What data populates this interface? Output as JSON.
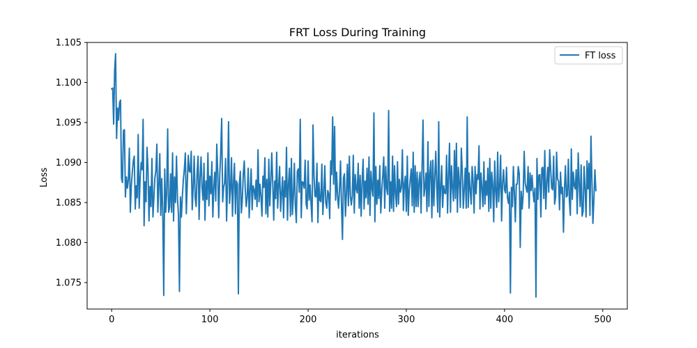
{
  "chart_data": {
    "type": "line",
    "title": "FRT Loss During Training",
    "xlabel": "iterations",
    "ylabel": "Loss",
    "xlim": [
      -25,
      525
    ],
    "ylim": [
      1.0717,
      1.105
    ],
    "xticks": [
      0,
      100,
      200,
      300,
      400,
      500
    ],
    "xtick_labels": [
      "0",
      "100",
      "200",
      "300",
      "400",
      "500"
    ],
    "yticks": [
      1.075,
      1.08,
      1.085,
      1.09,
      1.095,
      1.1,
      1.105
    ],
    "ytick_labels": [
      "1.075",
      "1.080",
      "1.085",
      "1.090",
      "1.095",
      "1.100",
      "1.105"
    ],
    "grid": false,
    "legend_position": "top-right",
    "series": [
      {
        "name": "FT loss",
        "color": "#1f77b4",
        "x_start": 0,
        "x_step": 1,
        "values": [
          1.0992,
          1.0993,
          1.0948,
          1.1015,
          1.1036,
          1.093,
          1.0968,
          1.0953,
          1.0975,
          1.0978,
          1.088,
          1.0875,
          1.094,
          1.0941,
          1.0857,
          1.0882,
          1.0868,
          1.0879,
          1.0918,
          1.0838,
          1.0871,
          1.0888,
          1.0902,
          1.0908,
          1.0842,
          1.0871,
          1.0856,
          1.0935,
          1.0843,
          1.0881,
          1.09,
          1.0891,
          1.0954,
          1.0821,
          1.0876,
          1.0851,
          1.0919,
          1.0891,
          1.0827,
          1.087,
          1.0845,
          1.0905,
          1.0832,
          1.0856,
          1.0881,
          1.089,
          1.0923,
          1.0838,
          1.0871,
          1.0911,
          1.0834,
          1.088,
          1.0839,
          1.0734,
          1.0892,
          1.0838,
          1.0861,
          1.0942,
          1.0838,
          1.0844,
          1.0886,
          1.0838,
          1.0912,
          1.0827,
          1.0882,
          1.085,
          1.0908,
          1.0855,
          1.0835,
          1.0739,
          1.0857,
          1.0832,
          1.0858,
          1.0879,
          1.0892,
          1.0912,
          1.0836,
          1.0876,
          1.0909,
          1.0889,
          1.0888,
          1.0914,
          1.0841,
          1.0869,
          1.0908,
          1.0856,
          1.0845,
          1.0888,
          1.0908,
          1.0829,
          1.0881,
          1.0907,
          1.0869,
          1.0853,
          1.0899,
          1.0828,
          1.0877,
          1.0854,
          1.0912,
          1.0846,
          1.0883,
          1.0861,
          1.0901,
          1.0832,
          1.0869,
          1.0888,
          1.0852,
          1.0923,
          1.0887,
          1.0831,
          1.0883,
          1.0912,
          1.0955,
          1.0851,
          1.0869,
          1.0875,
          1.0905,
          1.0827,
          1.0875,
          1.0951,
          1.0849,
          1.0866,
          1.0906,
          1.0833,
          1.0875,
          1.0899,
          1.0836,
          1.0877,
          1.0873,
          1.0736,
          1.0874,
          1.0889,
          1.0837,
          1.0853,
          1.0886,
          1.0902,
          1.0867,
          1.0845,
          1.0857,
          1.0893,
          1.0831,
          1.0866,
          1.0892,
          1.0841,
          1.0871,
          1.0866,
          1.0854,
          1.0878,
          1.0845,
          1.0916,
          1.0851,
          1.0873,
          1.0858,
          1.0833,
          1.0883,
          1.0869,
          1.0906,
          1.0836,
          1.0879,
          1.0832,
          1.0904,
          1.0846,
          1.0876,
          1.0912,
          1.0874,
          1.0828,
          1.0877,
          1.0855,
          1.0913,
          1.0843,
          1.0871,
          1.0895,
          1.0839,
          1.0861,
          1.0882,
          1.0831,
          1.0877,
          1.0857,
          1.0919,
          1.0828,
          1.0873,
          1.0893,
          1.0833,
          1.0905,
          1.0835,
          1.0858,
          1.0899,
          1.0846,
          1.0825,
          1.0889,
          1.0892,
          1.0863,
          1.0954,
          1.0831,
          1.0876,
          1.0875,
          1.0868,
          1.0903,
          1.0848,
          1.0842,
          1.0902,
          1.0853,
          1.0872,
          1.0849,
          1.0826,
          1.0947,
          1.0884,
          1.0858,
          1.0857,
          1.0899,
          1.0825,
          1.0875,
          1.0853,
          1.0851,
          1.0898,
          1.0835,
          1.0861,
          1.0896,
          1.085,
          1.0843,
          1.0865,
          1.0861,
          1.083,
          1.0902,
          1.0885,
          1.0957,
          1.0873,
          1.0945,
          1.0853,
          1.0888,
          1.0858,
          1.0843,
          1.0867,
          1.0902,
          1.0847,
          1.0804,
          1.0881,
          1.0886,
          1.0833,
          1.0862,
          1.0898,
          1.0846,
          1.0908,
          1.0859,
          1.0847,
          1.0858,
          1.0909,
          1.0837,
          1.0885,
          1.0867,
          1.0862,
          1.0899,
          1.0843,
          1.0884,
          1.0833,
          1.0876,
          1.0904,
          1.0842,
          1.0877,
          1.0856,
          1.0893,
          1.0848,
          1.0907,
          1.0834,
          1.0889,
          1.0868,
          1.0858,
          1.0962,
          1.0826,
          1.0895,
          1.0848,
          1.0878,
          1.0855,
          1.0896,
          1.0837,
          1.0865,
          1.0883,
          1.0907,
          1.0843,
          1.0895,
          1.0868,
          1.086,
          1.0965,
          1.0839,
          1.0876,
          1.0843,
          1.0908,
          1.0839,
          1.0896,
          1.0861,
          1.0845,
          1.0901,
          1.0848,
          1.0879,
          1.0863,
          1.0869,
          1.0916,
          1.084,
          1.0873,
          1.0883,
          1.0839,
          1.0908,
          1.0834,
          1.0865,
          1.0879,
          1.0892,
          1.0846,
          1.0913,
          1.0838,
          1.0896,
          1.0845,
          1.0888,
          1.0845,
          1.0877,
          1.0888,
          1.0837,
          1.0892,
          1.0953,
          1.0858,
          1.0869,
          1.0887,
          1.0839,
          1.0926,
          1.0845,
          1.0887,
          1.0902,
          1.0831,
          1.0903,
          1.0846,
          1.0882,
          1.0914,
          1.0869,
          1.0838,
          1.0951,
          1.0832,
          1.0867,
          1.0896,
          1.0844,
          1.0871,
          1.0862,
          1.0861,
          1.0909,
          1.0837,
          1.0885,
          1.0924,
          1.0838,
          1.0896,
          1.0869,
          1.0852,
          1.0915,
          1.0855,
          1.0924,
          1.0838,
          1.0894,
          1.0875,
          1.0844,
          1.0918,
          1.0889,
          1.0843,
          1.0867,
          1.0893,
          1.0843,
          1.0957,
          1.0844,
          1.0887,
          1.0866,
          1.0848,
          1.0895,
          1.0876,
          1.0837,
          1.0895,
          1.0861,
          1.0885,
          1.0879,
          1.0921,
          1.0842,
          1.0887,
          1.0868,
          1.0845,
          1.0901,
          1.0848,
          1.0877,
          1.0859,
          1.0893,
          1.0839,
          1.0905,
          1.0843,
          1.0888,
          1.0872,
          1.0826,
          1.0902,
          1.0864,
          1.0844,
          1.0913,
          1.0851,
          1.0869,
          1.0909,
          1.0827,
          1.0874,
          1.0891,
          1.0866,
          1.0862,
          1.0894,
          1.0856,
          1.0849,
          1.0863,
          1.0737,
          1.0869,
          1.0845,
          1.0895,
          1.0862,
          1.0826,
          1.0873,
          1.0873,
          1.0895,
          1.0886,
          1.0794,
          1.0864,
          1.0842,
          1.0861,
          1.0914,
          1.0875,
          1.0868,
          1.0863,
          1.0895,
          1.0843,
          1.0887,
          1.0865,
          1.0884,
          1.0864,
          1.0851,
          1.0868,
          1.0732,
          1.0905,
          1.0854,
          1.0884,
          1.0885,
          1.0832,
          1.0893,
          1.0894,
          1.0855,
          1.0915,
          1.0842,
          1.0874,
          1.0894,
          1.0863,
          1.0916,
          1.0891,
          1.0868,
          1.0866,
          1.0908,
          1.0848,
          1.0857,
          1.0913,
          1.0879,
          1.0877,
          1.0841,
          1.0888,
          1.0861,
          1.0869,
          1.0813,
          1.0865,
          1.0896,
          1.0857,
          1.0859,
          1.0904,
          1.0853,
          1.0834,
          1.0917,
          1.0854,
          1.0888,
          1.0871,
          1.0867,
          1.0891,
          1.0836,
          1.0912,
          1.0875,
          1.0845,
          1.0897,
          1.0833,
          1.0839,
          1.0895,
          1.0867,
          1.0832,
          1.0902,
          1.0867,
          1.0899,
          1.0834,
          1.0933,
          1.0877,
          1.0824,
          1.0854,
          1.0891,
          1.0865
        ]
      }
    ]
  }
}
